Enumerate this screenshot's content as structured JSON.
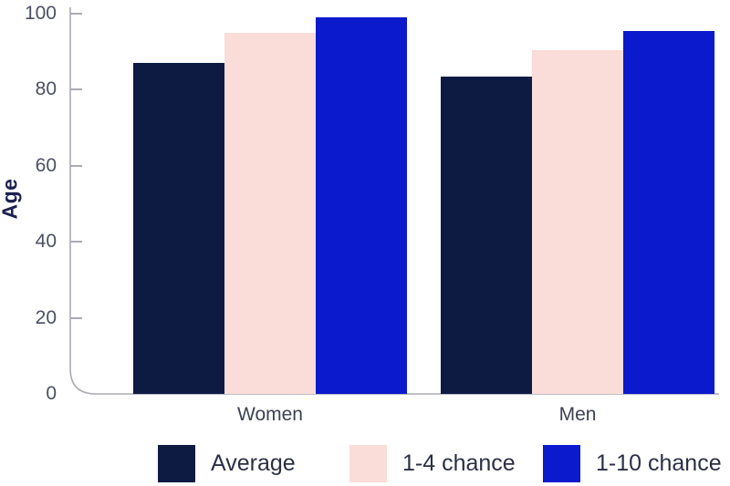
{
  "chart_data": {
    "type": "bar",
    "title": "",
    "xlabel": "",
    "ylabel": "Age",
    "categories": [
      "Women",
      "Men"
    ],
    "series": [
      {
        "name": "Average",
        "color": "#0d1b42",
        "values": [
          87,
          83.5
        ]
      },
      {
        "name": "1-4 chance",
        "color": "#fadcd8",
        "values": [
          95,
          90.5
        ]
      },
      {
        "name": "1-10 chance",
        "color": "#0a1acc",
        "values": [
          99,
          95.5
        ]
      }
    ],
    "yticks": [
      0,
      20,
      40,
      60,
      80,
      100
    ],
    "ylim": [
      0,
      100
    ],
    "grid": false,
    "legend_position": "bottom"
  },
  "colors": {
    "axis": "#a9aab3",
    "tick_label": "#4b5063",
    "category_label": "#3c4254",
    "legend_text": "#2b3045",
    "ylabel": "#1c2150",
    "background": "#ffffff"
  }
}
